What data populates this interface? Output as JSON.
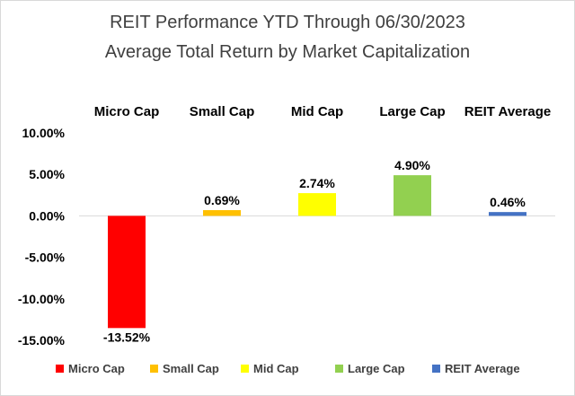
{
  "chart_data": {
    "type": "bar",
    "title": "REIT Performance YTD Through 06/30/2023",
    "subtitle": "Average Total Return by Market Capitalization",
    "categories": [
      "Micro Cap",
      "Small Cap",
      "Mid Cap",
      "Large Cap",
      "REIT Average"
    ],
    "values": [
      -13.52,
      0.69,
      2.74,
      4.9,
      0.46
    ],
    "data_labels": [
      "-13.52%",
      "0.69%",
      "2.74%",
      "4.90%",
      "0.46%"
    ],
    "colors": [
      "#ff0000",
      "#ffc000",
      "#ffff00",
      "#92d050",
      "#4472c4"
    ],
    "ylim": [
      -15,
      10
    ],
    "yticks": [
      10,
      5,
      0,
      -5,
      -10,
      -15
    ],
    "ytick_labels": [
      "10.00%",
      "5.00%",
      "0.00%",
      "-5.00%",
      "-10.00%",
      "-15.00%"
    ],
    "xlabel": "",
    "ylabel": "",
    "grid": false,
    "category_labels_position": "top",
    "legend": {
      "position": "bottom",
      "entries": [
        "Micro Cap",
        "Small Cap",
        "Mid Cap",
        "Large Cap",
        "REIT Average"
      ]
    }
  }
}
